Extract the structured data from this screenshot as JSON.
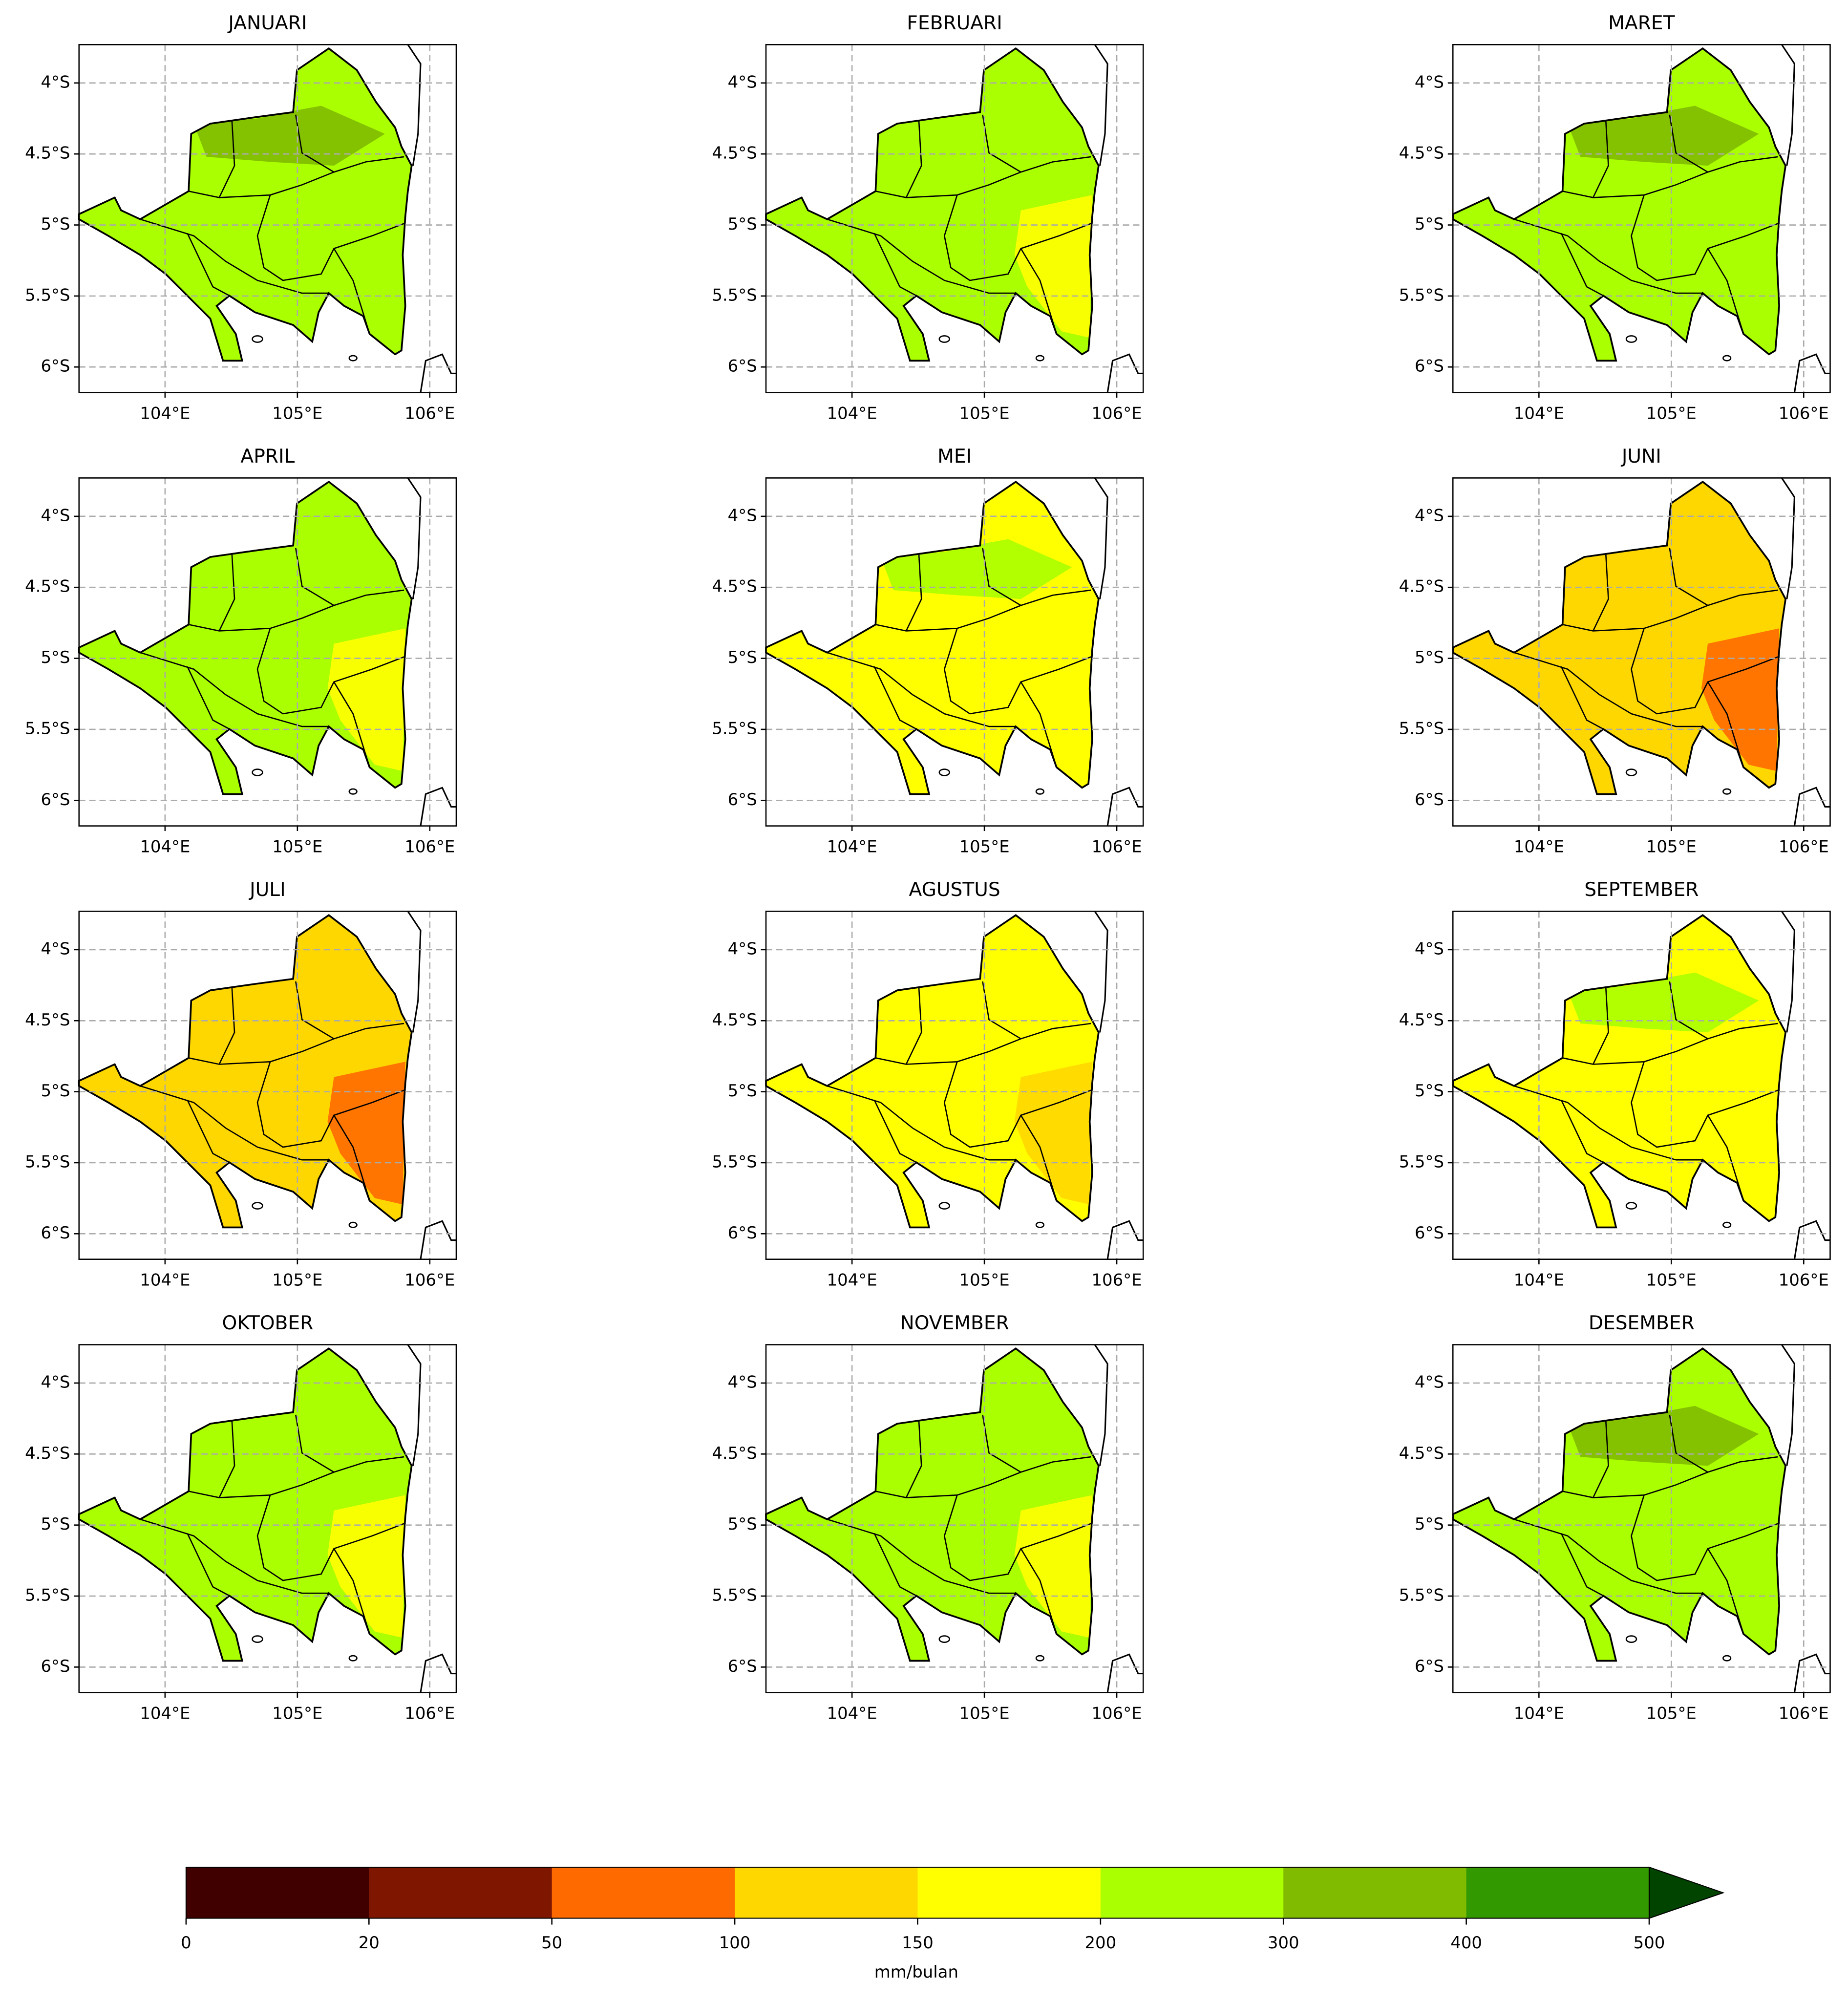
{
  "maps": {
    "type": "map-grid",
    "xlim": [
      103.35,
      106.2
    ],
    "ylim": [
      -6.18,
      -3.73
    ],
    "xticks": [
      {
        "value": 104,
        "label": "104°E"
      },
      {
        "value": 105,
        "label": "105°E"
      },
      {
        "value": 106,
        "label": "106°E"
      }
    ],
    "yticks": [
      {
        "value": -4,
        "label": "4°S"
      },
      {
        "value": -4.5,
        "label": "4.5°S"
      },
      {
        "value": -5,
        "label": "5°S"
      },
      {
        "value": -5.5,
        "label": "5.5°S"
      },
      {
        "value": -6,
        "label": "6°S"
      }
    ],
    "grid": true,
    "panels": [
      {
        "title": "JANUARI",
        "color": "#aaff00",
        "accent_color": "#80bb00",
        "accent_area": "north"
      },
      {
        "title": "FEBRUARI",
        "color": "#aaff00",
        "accent_color": "#ffff00",
        "accent_area": "southeast"
      },
      {
        "title": "MARET",
        "color": "#aaff00",
        "accent_color": "#80bb00",
        "accent_area": "north"
      },
      {
        "title": "APRIL",
        "color": "#aaff00",
        "accent_color": "#ffff00",
        "accent_area": "southeast"
      },
      {
        "title": "MEI",
        "color": "#ffff00",
        "accent_color": "#aaff00",
        "accent_area": "north"
      },
      {
        "title": "JUNI",
        "color": "#ffd700",
        "accent_color": "#ff6a00",
        "accent_area": "southeast"
      },
      {
        "title": "JULI",
        "color": "#ffd700",
        "accent_color": "#ff6a00",
        "accent_area": "southeast"
      },
      {
        "title": "AGUSTUS",
        "color": "#ffff00",
        "accent_color": "#ffd700",
        "accent_area": "southeast"
      },
      {
        "title": "SEPTEMBER",
        "color": "#ffff00",
        "accent_color": "#aaff00",
        "accent_area": "north"
      },
      {
        "title": "OKTOBER",
        "color": "#aaff00",
        "accent_color": "#ffff00",
        "accent_area": "southeast"
      },
      {
        "title": "NOVEMBER",
        "color": "#aaff00",
        "accent_color": "#ffff00",
        "accent_area": "southeast"
      },
      {
        "title": "DESEMBER",
        "color": "#aaff00",
        "accent_color": "#80bb00",
        "accent_area": "north"
      }
    ],
    "colorbar": {
      "boundaries": [
        0,
        20,
        50,
        100,
        150,
        200,
        300,
        400,
        500
      ],
      "colors": [
        "#400000",
        "#7f1700",
        "#ff6a00",
        "#ffd700",
        "#ffff00",
        "#aaff00",
        "#80bb00",
        "#339900"
      ],
      "extend_color": "#004400",
      "label": "mm/bulan"
    }
  }
}
